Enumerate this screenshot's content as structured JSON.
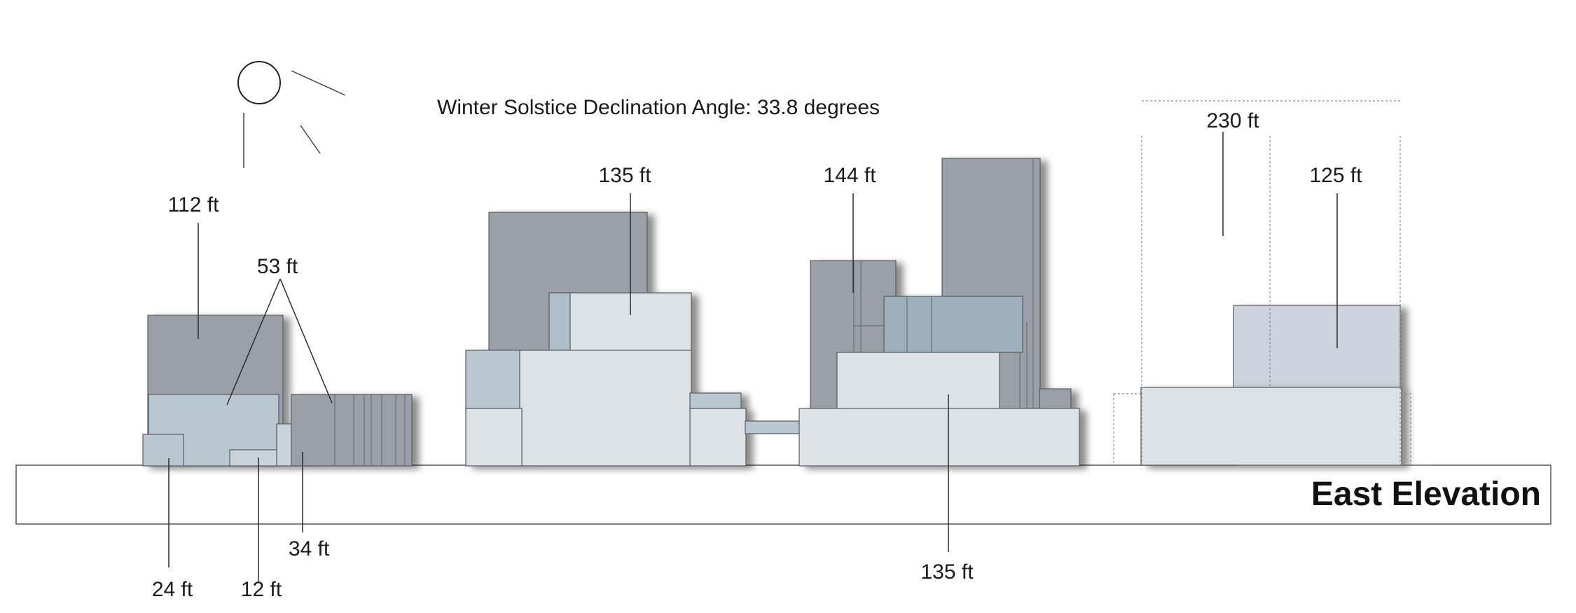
{
  "diagram": {
    "title": "East Elevation",
    "declination_text": "Winter Solstice Declination Angle: 33.8 degrees",
    "sun_icon": "sun-icon",
    "labels": {
      "h112": "112 ft",
      "h53": "53 ft",
      "h24": "24 ft",
      "h12": "12 ft",
      "h34": "34 ft",
      "h135_top": "135 ft",
      "h144": "144 ft",
      "h135_bottom": "135 ft",
      "h230": "230 ft",
      "h125": "125 ft"
    },
    "colors": {
      "dark_gray": "#9ba0a8",
      "blue_gray": "#b9c7d0",
      "light_gray": "#dde2e6",
      "steel_blue": "#9fb0bd",
      "lavender_gray": "#cdd3dc"
    }
  }
}
